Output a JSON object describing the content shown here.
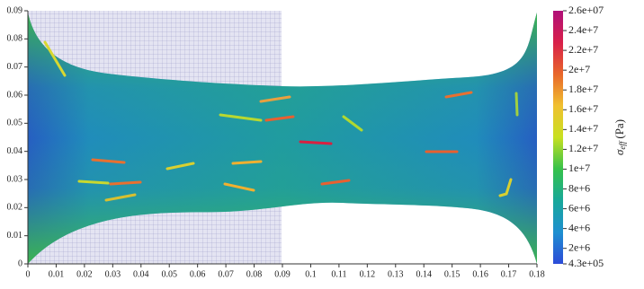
{
  "chart_data": {
    "type": "field",
    "xlim": [
      0,
      0.18
    ],
    "xticks": [
      0,
      0.01,
      0.02,
      0.03,
      0.04,
      0.05,
      0.06,
      0.07,
      0.08,
      0.09,
      0.1,
      0.11,
      0.12,
      0.13,
      0.14,
      0.15,
      0.16,
      0.17,
      0.18
    ],
    "ylim": [
      0,
      0.09
    ],
    "yticks": [
      0,
      0.01,
      0.02,
      0.03,
      0.04,
      0.05,
      0.06,
      0.07,
      0.08,
      0.09
    ],
    "colorbar": {
      "label": "σ",
      "label_sub": "eff",
      "label_unit": "(Pa)",
      "lim": [
        430000,
        26000000
      ],
      "colors": [
        "#2c4bd8",
        "#1e8fd0",
        "#18a89a",
        "#36c24a",
        "#c8e020",
        "#f0c030",
        "#e8662a",
        "#d8204a",
        "#b0107a"
      ],
      "ticks": [
        {
          "value": 26000000,
          "label": "2.6e+07"
        },
        {
          "value": 24000000,
          "label": "2.4e+7"
        },
        {
          "value": 22000000,
          "label": "2.2e+7"
        },
        {
          "value": 20000000,
          "label": "2e+7"
        },
        {
          "value": 18000000,
          "label": "1.8e+7"
        },
        {
          "value": 16000000,
          "label": "1.6e+7"
        },
        {
          "value": 14000000,
          "label": "1.4e+7"
        },
        {
          "value": 12000000,
          "label": "1.2e+7"
        },
        {
          "value": 10000000,
          "label": "1e+7"
        },
        {
          "value": 8000000,
          "label": "8e+6"
        },
        {
          "value": 6000000,
          "label": "6e+6"
        },
        {
          "value": 4000000,
          "label": "4e+6"
        },
        {
          "value": 2000000,
          "label": "2e+6"
        },
        {
          "value": 430000,
          "label": "4.3e+05"
        }
      ]
    }
  }
}
